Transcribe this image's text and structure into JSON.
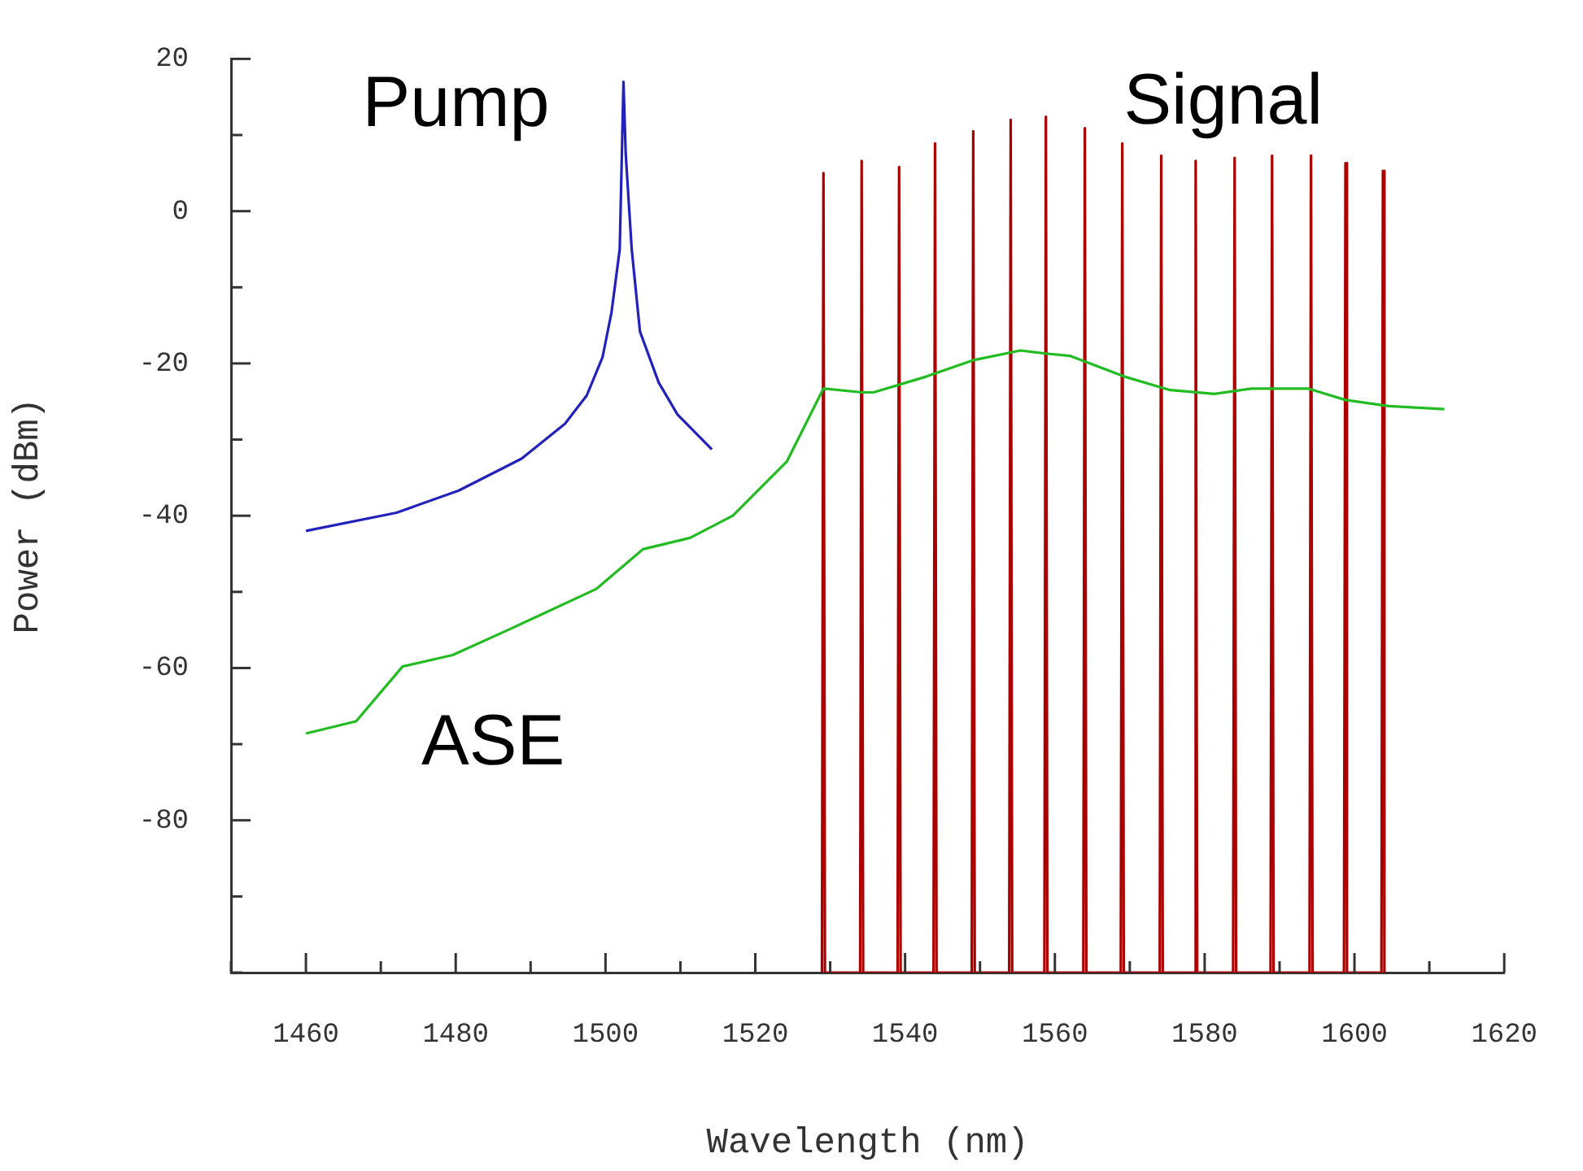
{
  "chart_data": {
    "type": "line",
    "xlabel": "Wavelength (nm)",
    "ylabel": "Power (dBm)",
    "xlim": [
      1450,
      1620
    ],
    "xticks": [
      {
        "value": 1450,
        "label": null
      },
      1460,
      {
        "value": 1470,
        "label": null
      },
      1480,
      {
        "value": 1490,
        "label": null
      },
      1500,
      {
        "value": 1510,
        "label": null
      },
      1520,
      {
        "value": 1530,
        "label": null
      },
      1540,
      {
        "value": 1550,
        "label": null
      },
      1560,
      {
        "value": 1570,
        "label": null
      },
      1580,
      {
        "value": 1590,
        "label": null
      },
      1600,
      {
        "value": 1610,
        "label": null
      },
      1620
    ],
    "ylim": [
      -100,
      20
    ],
    "yticks": [
      {
        "value": -100,
        "label": null
      },
      {
        "value": -90,
        "label": null
      },
      -80,
      {
        "value": -70,
        "label": null
      },
      -60,
      {
        "value": -50,
        "label": null
      },
      -40,
      {
        "value": -30,
        "label": null
      },
      -20,
      {
        "value": -10,
        "label": null
      },
      0,
      {
        "value": 10,
        "label": null
      },
      20
    ],
    "grid": false,
    "legend": false,
    "marker": "none",
    "line_style": "solid",
    "series": [
      {
        "name": "Pump",
        "color": "#2222bb",
        "x": [
          1460,
          1472.1,
          1480.4,
          1488.8,
          1494.6,
          1497.5,
          1499.6,
          1500.8,
          1501.9,
          1502.4,
          1502.7,
          1503.5,
          1504.6,
          1507.1,
          1509.6,
          1514.2
        ],
        "values": [
          -42,
          -39.6,
          -36.7,
          -32.5,
          -27.9,
          -24.2,
          -19.2,
          -13.3,
          -5,
          17,
          7.5,
          -5,
          -15.8,
          -22.5,
          -26.7,
          -31.3
        ]
      },
      {
        "name": "ASE",
        "color": "#22bb22",
        "x": [
          1460,
          1466.7,
          1472.9,
          1479.6,
          1487,
          1498.8,
          1505,
          1511.3,
          1517,
          1524.2,
          1529.1,
          1534.2,
          1535.8,
          1542.9,
          1549,
          1555.4,
          1558.8,
          1562,
          1569.2,
          1575.4,
          1581.3,
          1586.3,
          1593.8,
          1598.8,
          1604.6,
          1612
        ],
        "values": [
          -68.6,
          -67,
          -59.8,
          -58.3,
          -55,
          -49.6,
          -44.4,
          -42.9,
          -40,
          -32.9,
          -23.3,
          -23.8,
          -23.8,
          -21.7,
          -19.6,
          -18.3,
          -18.7,
          -19,
          -21.7,
          -23.5,
          -24,
          -23.3,
          -23.3,
          -24.8,
          -25.6,
          -26
        ]
      },
      {
        "name": "Signal",
        "color": "#aa0000",
        "x": [
          1528.9,
          1529.1,
          1529.3,
          1534,
          1534.2,
          1534.4,
          1539,
          1539.2,
          1539.4,
          1543.8,
          1544,
          1544.2,
          1548.9,
          1549.1,
          1549.3,
          1553.9,
          1554.1,
          1554.3,
          1558.6,
          1558.8,
          1559,
          1563.8,
          1564,
          1564.2,
          1568.8,
          1569,
          1569.2,
          1574,
          1574.2,
          1574.4,
          1578.6,
          1578.8,
          1579,
          1583.8,
          1584,
          1584.2,
          1588.8,
          1589,
          1589.2,
          1594,
          1594.2,
          1594.4,
          1598.6,
          1598.8,
          1599,
          1603.6,
          1603.8,
          1604
        ],
        "values": [
          -100,
          5,
          -100,
          -100,
          6.6,
          -100,
          -100,
          5.8,
          -100,
          -100,
          8.9,
          -100,
          -100,
          10.5,
          -100,
          -100,
          12,
          -100,
          -100,
          12.4,
          -100,
          -100,
          10.9,
          -100,
          -100,
          8.9,
          -100,
          -100,
          7.3,
          -100,
          -100,
          6.6,
          -100,
          -100,
          7,
          -100,
          -100,
          7.3,
          -100,
          -100,
          7.3,
          -100,
          -100,
          6.3,
          -100,
          -100,
          5.3,
          -100
        ]
      }
    ]
  }
}
